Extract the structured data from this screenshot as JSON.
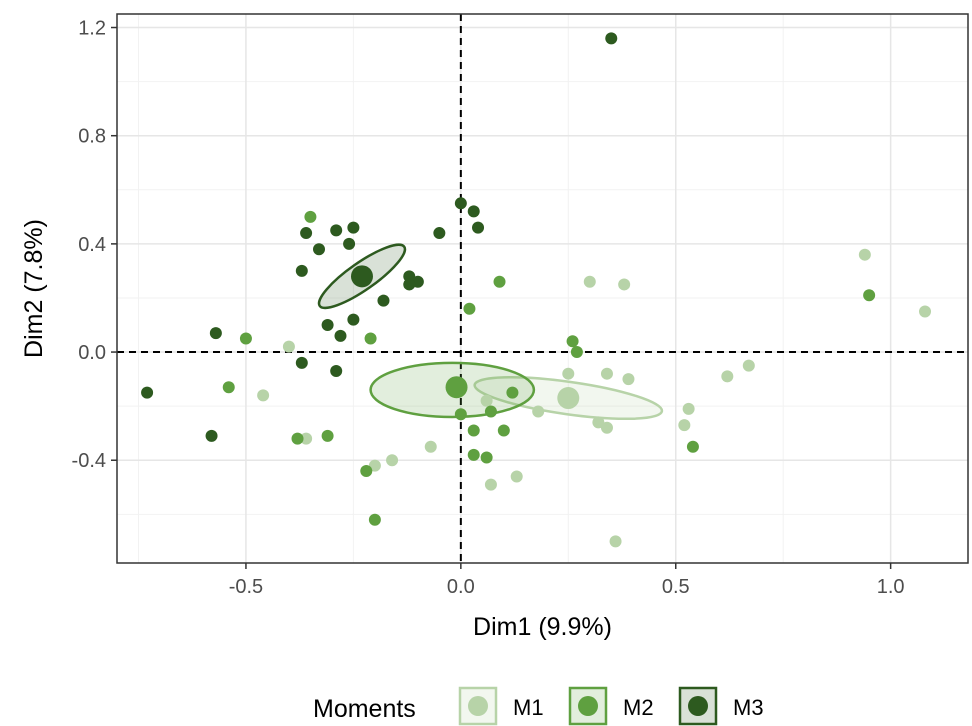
{
  "chart_data": {
    "type": "scatter",
    "title": "",
    "xlabel": "Dim1 (9.9%)",
    "ylabel": "Dim2 (7.8%)",
    "xlim": [
      -0.8,
      1.18
    ],
    "ylim": [
      -0.78,
      1.25
    ],
    "x_ticks": [
      -0.5,
      0.0,
      0.5,
      1.0
    ],
    "x_tick_labels": [
      "-0.5",
      "0.0",
      "0.5",
      "1.0"
    ],
    "y_ticks": [
      -0.4,
      0.0,
      0.4,
      0.8,
      1.2
    ],
    "y_tick_labels": [
      "-0.4",
      "0.0",
      "0.4",
      "0.8",
      "1.2"
    ],
    "grid": true,
    "reference_lines": {
      "x": 0,
      "y": 0,
      "style": "dashed"
    },
    "legend": {
      "title": "Moments",
      "position": "bottom"
    },
    "series": [
      {
        "name": "M1",
        "color": "#b7d3a8",
        "centroid": [
          0.25,
          -0.17
        ],
        "ellipse": {
          "center": [
            0.25,
            -0.17
          ],
          "rx": 0.22,
          "ry": 0.06,
          "rotation_deg": -8
        },
        "points": [
          [
            0.94,
            0.36
          ],
          [
            1.08,
            0.15
          ],
          [
            0.3,
            0.26
          ],
          [
            0.38,
            0.25
          ],
          [
            0.67,
            -0.05
          ],
          [
            0.62,
            -0.09
          ],
          [
            0.53,
            -0.21
          ],
          [
            0.52,
            -0.27
          ],
          [
            0.39,
            -0.1
          ],
          [
            0.34,
            -0.08
          ],
          [
            0.25,
            -0.08
          ],
          [
            0.18,
            -0.22
          ],
          [
            0.32,
            -0.26
          ],
          [
            0.34,
            -0.28
          ],
          [
            0.36,
            -0.7
          ],
          [
            0.13,
            -0.46
          ],
          [
            0.07,
            -0.49
          ],
          [
            -0.07,
            -0.35
          ],
          [
            -0.16,
            -0.4
          ],
          [
            -0.2,
            -0.42
          ],
          [
            -0.36,
            -0.32
          ],
          [
            -0.46,
            -0.16
          ],
          [
            -0.4,
            0.02
          ],
          [
            0.06,
            -0.18
          ]
        ]
      },
      {
        "name": "M2",
        "color": "#5fa040",
        "centroid": [
          -0.01,
          -0.13
        ],
        "ellipse": {
          "center": [
            -0.02,
            -0.14
          ],
          "rx": 0.19,
          "ry": 0.1,
          "rotation_deg": 0
        },
        "points": [
          [
            -0.35,
            0.5
          ],
          [
            0.09,
            0.26
          ],
          [
            0.02,
            0.16
          ],
          [
            0.95,
            0.21
          ],
          [
            0.26,
            0.04
          ],
          [
            -0.21,
            0.05
          ],
          [
            -0.5,
            0.05
          ],
          [
            -0.54,
            -0.13
          ],
          [
            0.12,
            -0.15
          ],
          [
            0.07,
            -0.22
          ],
          [
            0.0,
            -0.23
          ],
          [
            0.03,
            -0.29
          ],
          [
            0.1,
            -0.29
          ],
          [
            0.03,
            -0.38
          ],
          [
            0.06,
            -0.39
          ],
          [
            -0.22,
            -0.44
          ],
          [
            -0.38,
            -0.32
          ],
          [
            -0.31,
            -0.31
          ],
          [
            -0.2,
            -0.62
          ],
          [
            0.54,
            -0.35
          ],
          [
            0.27,
            0.0
          ]
        ]
      },
      {
        "name": "M3",
        "color": "#2d5a1f",
        "centroid": [
          -0.23,
          0.28
        ],
        "ellipse": {
          "center": [
            -0.23,
            0.28
          ],
          "rx": 0.12,
          "ry": 0.05,
          "rotation_deg": 35
        },
        "points": [
          [
            0.35,
            1.16
          ],
          [
            0.0,
            0.55
          ],
          [
            0.03,
            0.52
          ],
          [
            0.04,
            0.46
          ],
          [
            -0.05,
            0.44
          ],
          [
            -0.25,
            0.46
          ],
          [
            -0.29,
            0.45
          ],
          [
            -0.36,
            0.44
          ],
          [
            -0.26,
            0.4
          ],
          [
            -0.33,
            0.38
          ],
          [
            -0.37,
            0.3
          ],
          [
            -0.12,
            0.28
          ],
          [
            -0.1,
            0.26
          ],
          [
            -0.12,
            0.25
          ],
          [
            -0.18,
            0.19
          ],
          [
            -0.25,
            0.12
          ],
          [
            -0.31,
            0.1
          ],
          [
            -0.28,
            0.06
          ],
          [
            -0.57,
            0.07
          ],
          [
            -0.37,
            -0.04
          ],
          [
            -0.29,
            -0.07
          ],
          [
            -0.73,
            -0.15
          ],
          [
            -0.58,
            -0.31
          ]
        ]
      }
    ]
  }
}
